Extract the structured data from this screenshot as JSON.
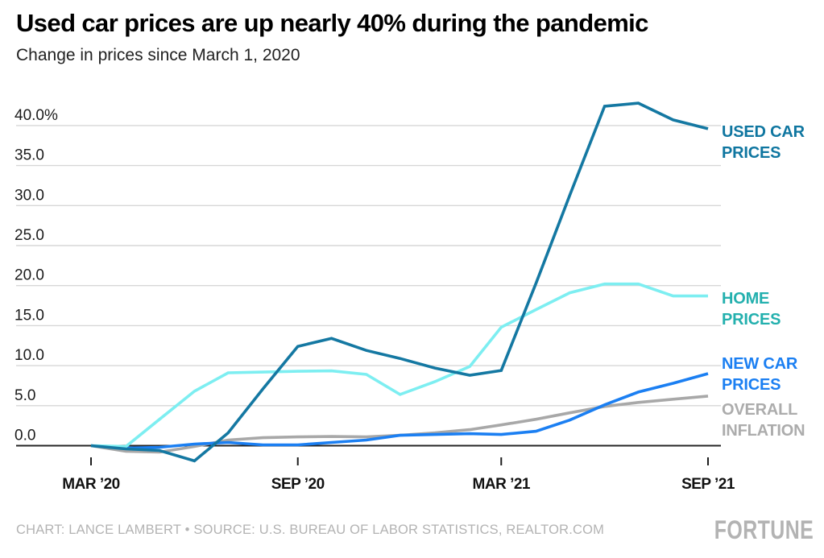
{
  "header": {
    "title": "Used car prices are up nearly 40% during the pandemic",
    "subtitle": "Change in prices since March 1, 2020"
  },
  "legend": {
    "items": [
      {
        "key": "used-car-prices",
        "label": "USED CAR PRICES",
        "color": "#0f76a0"
      },
      {
        "key": "home-prices",
        "label": "HOME PRICES",
        "color": "#23b0ae"
      },
      {
        "key": "new-car-prices",
        "label": "NEW CAR PRICES",
        "color": "#1b7ff2"
      },
      {
        "key": "overall-inflation",
        "label": "OVERALL INFLATION",
        "color": "#acacac"
      }
    ]
  },
  "footer": {
    "credit": "CHART: LANCE LAMBERT • SOURCE: U.S. BUREAU OF LABOR STATISTICS, REALTOR.COM",
    "brand": "FORTUNE"
  },
  "chart_data": {
    "type": "line",
    "title": "Used car prices are up nearly 40% during the pandemic",
    "subtitle": "Change in prices since March 1, 2020",
    "unit": "percent change since March 1, 2020",
    "grid": "horizontal",
    "legend_position": "right",
    "ylim": [
      -3,
      43
    ],
    "yticks": {
      "values": [
        40,
        35,
        30,
        25,
        20,
        15,
        10,
        5,
        0
      ],
      "labels": [
        "40.0%",
        "35.0",
        "30.0",
        "25.0",
        "20.0",
        "15.0",
        "10.0",
        "5.0",
        "0.0"
      ]
    },
    "xticks": [
      {
        "label": "MAR ’20",
        "day": 0
      },
      {
        "label": "SEP ’20",
        "day": 184
      },
      {
        "label": "MAR ’21",
        "day": 365
      },
      {
        "label": "SEP ’21",
        "day": 549
      }
    ],
    "x_months": [
      "Mar '20",
      "Apr '20",
      "May '20",
      "Jun '20",
      "Jul '20",
      "Aug '20",
      "Sep '20",
      "Oct '20",
      "Nov '20",
      "Dec '20",
      "Jan '21",
      "Feb '21",
      "Mar '21",
      "Apr '21",
      "May '21",
      "Jun '21",
      "Jul '21",
      "Aug '21",
      "Sep '21"
    ],
    "x_day_offsets": [
      0,
      31,
      61,
      92,
      122,
      153,
      184,
      214,
      245,
      275,
      306,
      337,
      365,
      396,
      426,
      457,
      487,
      518,
      549
    ],
    "series": [
      {
        "name": "USED CAR PRICES",
        "key": "used-car-prices",
        "color": "#1478a2",
        "values": [
          0,
          -0.4,
          -0.6,
          -1.9,
          1.6,
          7.1,
          12.4,
          13.4,
          11.9,
          10.9,
          9.7,
          8.8,
          9.4,
          20.3,
          31.3,
          42.4,
          42.8,
          40.7,
          39.6
        ]
      },
      {
        "name": "HOME PRICES",
        "key": "home-prices",
        "color": "#7deef1",
        "values": [
          0,
          -0.1,
          3.3,
          6.8,
          9.1,
          9.2,
          9.3,
          9.35,
          8.9,
          6.4,
          8.0,
          9.9,
          14.8,
          17.0,
          19.1,
          20.2,
          20.2,
          18.7,
          18.7
        ]
      },
      {
        "name": "NEW CAR PRICES",
        "key": "new-car-prices",
        "color": "#1b7ff2",
        "values": [
          0,
          -0.3,
          -0.2,
          0.2,
          0.4,
          0.1,
          0.1,
          0.4,
          0.7,
          1.3,
          1.4,
          1.5,
          1.4,
          1.8,
          3.2,
          5.1,
          6.7,
          7.8,
          9.0
        ]
      },
      {
        "name": "OVERALL INFLATION",
        "key": "overall-inflation",
        "color": "#a8a8a8",
        "values": [
          0,
          -0.7,
          -0.8,
          -0.1,
          0.7,
          1.0,
          1.1,
          1.15,
          1.1,
          1.3,
          1.6,
          2.0,
          2.6,
          3.3,
          4.1,
          4.9,
          5.4,
          5.8,
          6.2
        ]
      }
    ],
    "axis_color": "#262626",
    "gridline_color": "#d7d7d7",
    "tick_label_color": "#1b1b1b",
    "x_label_color": "#111111"
  }
}
